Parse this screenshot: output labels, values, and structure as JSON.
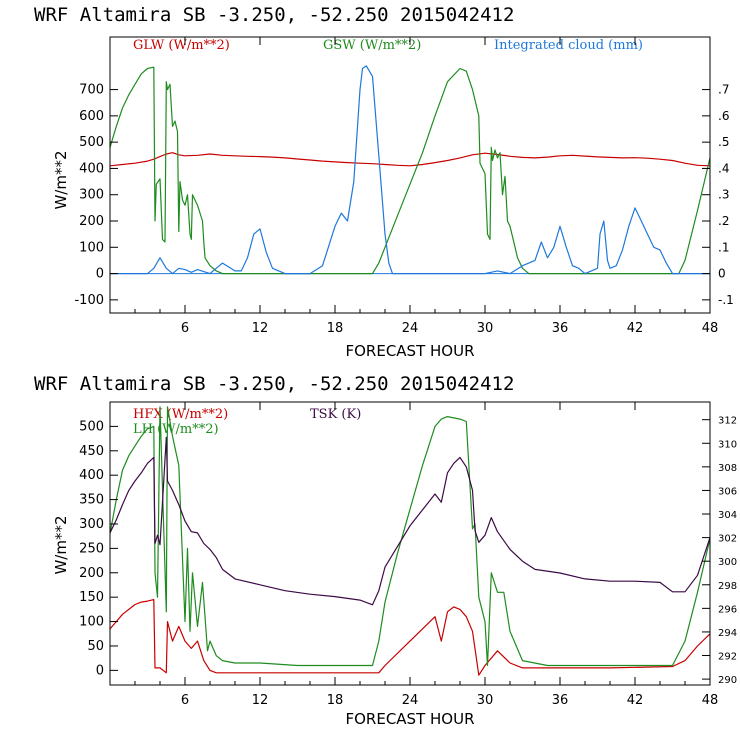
{
  "colors": {
    "red": "#c80000",
    "green": "#1e8c1e",
    "blue": "#1e78dc",
    "purple": "#3c0a46",
    "axis": "#000000"
  },
  "chart_data": [
    {
      "type": "line",
      "title": "WRF   Altamira  SB  -3.250, -52.250  2015042412",
      "xlabel": "FORECAST HOUR",
      "ylabel": "W/m**2",
      "xlim": [
        0,
        48
      ],
      "ylim": [
        -150,
        900
      ],
      "y2lim": [
        -0.15,
        0.9
      ],
      "x_ticks": [
        6,
        12,
        18,
        24,
        30,
        36,
        42,
        48
      ],
      "y_ticks": [
        -100,
        0,
        100,
        200,
        300,
        400,
        500,
        600,
        700
      ],
      "y2_ticks": [
        -0.1,
        0,
        0.1,
        0.2,
        0.3,
        0.4,
        0.5,
        0.6,
        0.7
      ],
      "y2_tick_labels": [
        "-.1",
        "0",
        ".1",
        ".2",
        ".3",
        ".4",
        ".5",
        ".6",
        ".7"
      ],
      "legend": [
        "GLW (W/m**2)",
        "GSW (W/m**2)",
        "Integrated cloud (mm)"
      ],
      "series": [
        {
          "name": "GLW (W/m**2)",
          "color": "red",
          "axis": "left",
          "x": [
            0,
            1,
            2,
            3,
            3.5,
            4,
            4.5,
            5,
            5.5,
            6,
            7,
            8,
            9,
            10,
            11,
            12,
            13,
            14,
            15,
            16,
            17,
            18,
            19,
            20,
            21,
            22,
            23,
            24,
            25,
            26,
            27,
            28,
            29,
            30,
            31,
            32,
            33,
            34,
            35,
            36,
            37,
            38,
            39,
            40,
            41,
            42,
            43,
            44,
            45,
            46,
            47,
            48
          ],
          "values": [
            410,
            415,
            420,
            428,
            435,
            445,
            455,
            460,
            452,
            448,
            450,
            455,
            450,
            448,
            446,
            445,
            443,
            440,
            436,
            432,
            428,
            425,
            422,
            420,
            418,
            415,
            412,
            410,
            415,
            422,
            430,
            440,
            452,
            458,
            453,
            446,
            442,
            440,
            443,
            448,
            450,
            447,
            444,
            442,
            440,
            441,
            439,
            435,
            430,
            420,
            412,
            410
          ]
        },
        {
          "name": "GSW (W/m**2)",
          "color": "green",
          "axis": "left",
          "x": [
            0,
            0.5,
            1,
            1.5,
            2,
            2.5,
            3,
            3.5,
            3.6,
            3.7,
            4,
            4.2,
            4.4,
            4.5,
            4.6,
            4.8,
            5,
            5.2,
            5.4,
            5.5,
            5.6,
            5.8,
            6,
            6.2,
            6.4,
            6.5,
            6.6,
            7,
            7.4,
            7.5,
            7.6,
            8,
            8.5,
            9,
            9.5,
            21,
            21.5,
            22,
            23,
            24,
            25,
            26,
            27,
            28,
            28.5,
            29,
            29.5,
            29.6,
            30,
            30.2,
            30.4,
            30.5,
            30.6,
            30.8,
            31,
            31.2,
            31.4,
            31.6,
            31.8,
            32,
            32.3,
            32.6,
            33,
            33.5,
            45.5,
            46,
            47,
            48
          ],
          "values": [
            480,
            560,
            630,
            680,
            720,
            760,
            780,
            785,
            200,
            340,
            360,
            130,
            120,
            730,
            700,
            720,
            560,
            580,
            540,
            160,
            350,
            280,
            260,
            300,
            150,
            130,
            300,
            260,
            200,
            120,
            60,
            30,
            10,
            0,
            0,
            0,
            40,
            100,
            220,
            340,
            460,
            600,
            730,
            780,
            770,
            700,
            600,
            420,
            380,
            150,
            130,
            480,
            430,
            470,
            440,
            460,
            300,
            370,
            200,
            180,
            120,
            60,
            20,
            0,
            0,
            50,
            240,
            440
          ]
        },
        {
          "name": "Integrated cloud (mm)",
          "color": "blue",
          "axis": "right",
          "x": [
            0,
            3,
            3.5,
            4,
            4.5,
            5,
            5.5,
            6,
            6.5,
            7,
            8,
            9,
            10,
            10.5,
            11,
            11.5,
            12,
            12.5,
            13,
            14,
            15,
            16,
            17,
            18,
            18.5,
            19,
            19.5,
            20,
            20.2,
            20.5,
            21,
            21.5,
            22,
            22.3,
            22.6,
            23,
            24,
            30,
            31,
            32,
            33,
            34,
            34.5,
            35,
            35.5,
            36,
            36.5,
            37,
            37.5,
            38,
            39,
            39.2,
            39.5,
            39.8,
            40,
            40.5,
            41,
            41.5,
            42,
            42.5,
            43,
            43.5,
            44,
            44.5,
            45,
            46,
            47,
            48
          ],
          "values": [
            0,
            0,
            0.02,
            0.06,
            0.02,
            0,
            0.02,
            0.015,
            0.005,
            0.015,
            0,
            0.04,
            0.01,
            0.01,
            0.06,
            0.15,
            0.17,
            0.08,
            0.02,
            0,
            0,
            0,
            0.03,
            0.18,
            0.23,
            0.2,
            0.35,
            0.7,
            0.78,
            0.79,
            0.75,
            0.45,
            0.15,
            0.04,
            0,
            0,
            0,
            0,
            0.01,
            0,
            0.03,
            0.05,
            0.12,
            0.06,
            0.1,
            0.18,
            0.1,
            0.03,
            0.02,
            0,
            0.02,
            0.15,
            0.2,
            0.05,
            0.02,
            0.03,
            0.09,
            0.18,
            0.25,
            0.2,
            0.15,
            0.1,
            0.09,
            0.04,
            0,
            0,
            0,
            0
          ]
        }
      ]
    },
    {
      "type": "line",
      "title": "WRF   Altamira  SB  -3.250, -52.250  2015042412",
      "xlabel": "FORECAST HOUR",
      "ylabel": "W/m**2",
      "xlim": [
        0,
        48
      ],
      "ylim": [
        -30,
        550
      ],
      "y2lim": [
        289.5,
        313.5
      ],
      "x_ticks": [
        6,
        12,
        18,
        24,
        30,
        36,
        42,
        48
      ],
      "y_ticks": [
        0,
        50,
        100,
        150,
        200,
        250,
        300,
        350,
        400,
        450,
        500
      ],
      "y2_ticks": [
        290,
        292,
        294,
        296,
        298,
        300,
        302,
        304,
        306,
        308,
        310,
        312
      ],
      "legend": [
        "HFX (W/m**2)",
        "LH  (W/m**2)",
        "TSK (K)"
      ],
      "series": [
        {
          "name": "HFX (W/m**2)",
          "color": "red",
          "axis": "left",
          "x": [
            0,
            0.5,
            1,
            1.5,
            2,
            2.5,
            3,
            3.5,
            3.6,
            4,
            4.5,
            4.6,
            5,
            5.5,
            6,
            6.5,
            7,
            7.5,
            8,
            8.5,
            9,
            12,
            18,
            21.5,
            22,
            24,
            26,
            26.5,
            27,
            27.5,
            28,
            28.5,
            29,
            29.5,
            30,
            31,
            32,
            33,
            36,
            40,
            45,
            46,
            47,
            48
          ],
          "values": [
            85,
            100,
            115,
            125,
            135,
            140,
            142,
            145,
            5,
            5,
            -5,
            100,
            60,
            90,
            60,
            45,
            60,
            20,
            0,
            -5,
            -5,
            -5,
            -5,
            -5,
            10,
            60,
            110,
            60,
            120,
            130,
            125,
            110,
            80,
            -10,
            10,
            40,
            15,
            5,
            5,
            5,
            8,
            20,
            50,
            75
          ]
        },
        {
          "name": "LH  (W/m**2)",
          "color": "green",
          "axis": "left",
          "x": [
            0,
            0.5,
            1,
            1.5,
            2,
            2.5,
            3,
            3.5,
            3.6,
            3.8,
            4,
            4.5,
            4.6,
            5,
            5.5,
            6,
            6.2,
            6.4,
            6.6,
            7,
            7.4,
            7.8,
            8,
            8.5,
            9,
            10,
            12,
            15,
            18,
            21,
            21.5,
            22,
            23,
            24,
            25,
            26,
            26.5,
            27,
            28,
            28.5,
            29,
            29.2,
            29.5,
            30,
            30.2,
            30.5,
            31,
            31.5,
            32,
            33,
            35,
            40,
            45,
            46,
            47,
            48
          ],
          "values": [
            280,
            350,
            410,
            440,
            460,
            480,
            495,
            500,
            200,
            150,
            540,
            120,
            540,
            480,
            420,
            100,
            250,
            80,
            200,
            90,
            180,
            40,
            60,
            30,
            20,
            15,
            15,
            10,
            10,
            10,
            60,
            140,
            240,
            330,
            420,
            500,
            515,
            520,
            515,
            510,
            290,
            300,
            150,
            100,
            10,
            200,
            160,
            160,
            80,
            20,
            10,
            10,
            10,
            60,
            160,
            270
          ]
        },
        {
          "name": "TSK (K)",
          "color": "purple",
          "axis": "right",
          "x": [
            0,
            0.5,
            1,
            1.5,
            2,
            2.5,
            3,
            3.5,
            3.6,
            3.8,
            4,
            4.5,
            4.6,
            5,
            5.5,
            6,
            6.5,
            7,
            7.5,
            8,
            8.5,
            9,
            10,
            12,
            14,
            16,
            18,
            20,
            21,
            21.5,
            22,
            24,
            26,
            26.5,
            27,
            27.5,
            28,
            28.5,
            29,
            29.2,
            29.5,
            30,
            30.5,
            31,
            32,
            33,
            34,
            36,
            38,
            40,
            42,
            44,
            45,
            46,
            47,
            48
          ],
          "values": [
            302.4,
            303.5,
            304.8,
            306,
            306.8,
            307.5,
            308.3,
            308.8,
            301.5,
            302.2,
            301.4,
            310.5,
            306.8,
            306,
            304.8,
            303.4,
            302.5,
            302.4,
            301.5,
            301,
            300.3,
            299.3,
            298.5,
            298,
            297.5,
            297.2,
            297,
            296.7,
            296.3,
            297.5,
            299.5,
            303,
            305.7,
            305,
            307.5,
            308.3,
            308.8,
            308,
            306,
            302.6,
            301.6,
            302.2,
            303.7,
            302.5,
            301,
            300,
            299.3,
            299,
            298.5,
            298.3,
            298.3,
            298.2,
            297.4,
            297.4,
            298.8,
            302
          ]
        }
      ]
    }
  ]
}
